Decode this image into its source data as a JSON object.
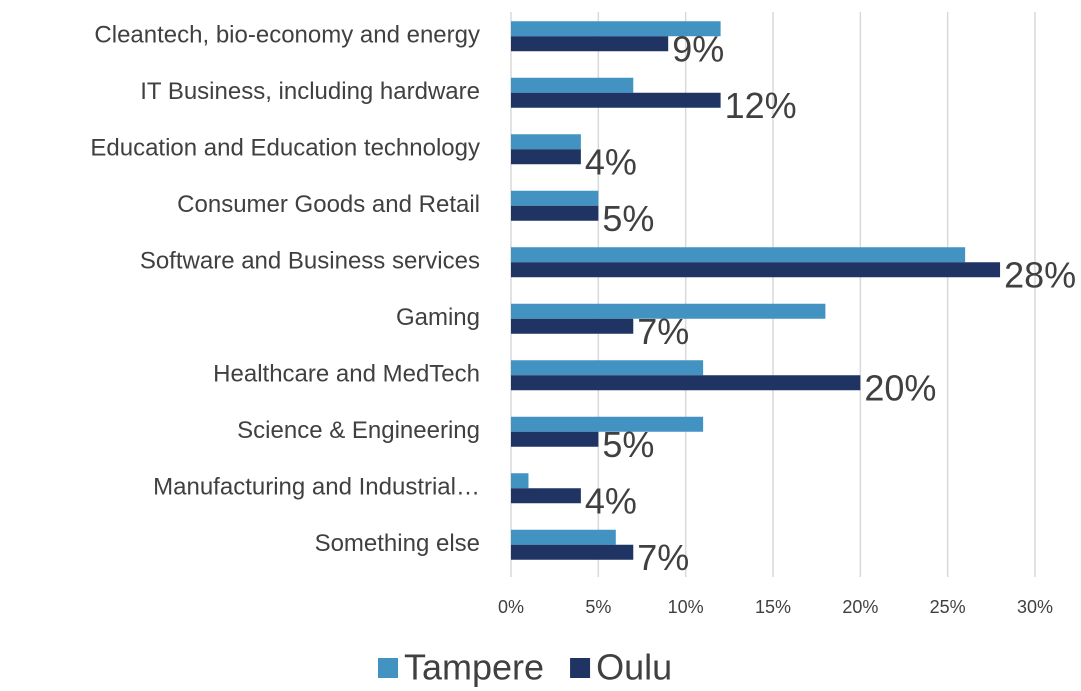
{
  "chart_data": {
    "type": "barh",
    "categories": [
      "Cleantech, bio-economy and energy",
      "IT Business, including hardware",
      "Education and Education technology",
      "Consumer Goods and Retail",
      "Software and Business services",
      "Gaming",
      "Healthcare and MedTech",
      "Science & Engineering",
      "Manufacturing and Industrial…",
      "Something else"
    ],
    "series": [
      {
        "name": "Tampere",
        "color": "#4292c2",
        "values": [
          12,
          7,
          4,
          5,
          26,
          18,
          11,
          11,
          1,
          6
        ]
      },
      {
        "name": "Oulu",
        "color": "#1f3463",
        "values": [
          9,
          12,
          4,
          5,
          28,
          7,
          20,
          5,
          4,
          7
        ],
        "value_labels": [
          "9%",
          "12%",
          "4%",
          "5%",
          "28%",
          "7%",
          "20%",
          "5%",
          "4%",
          "7%"
        ]
      }
    ],
    "xlim": [
      0,
      30
    ],
    "xticks": [
      {
        "value": 0,
        "label": "0%"
      },
      {
        "value": 5,
        "label": "5%"
      },
      {
        "value": 10,
        "label": "10%"
      },
      {
        "value": 15,
        "label": "15%"
      },
      {
        "value": 20,
        "label": "20%"
      },
      {
        "value": 25,
        "label": "25%"
      },
      {
        "value": 30,
        "label": "30%"
      }
    ],
    "grid": true,
    "legend": "bottom"
  }
}
